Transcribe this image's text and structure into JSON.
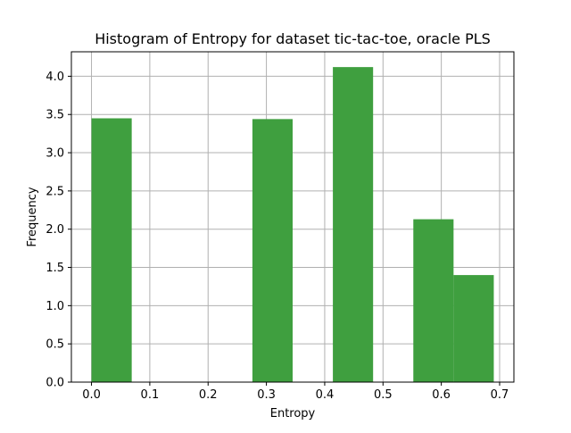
{
  "chart_data": {
    "type": "bar",
    "title": "Histogram of Entropy for dataset tic-tac-toe, oracle PLS",
    "xlabel": "Entropy",
    "ylabel": "Frequency",
    "xlim": [
      -0.0345,
      0.7245
    ],
    "ylim": [
      0.0,
      4.32
    ],
    "x_ticks": [
      {
        "value": 0.0,
        "label": "0.0"
      },
      {
        "value": 0.1,
        "label": "0.1"
      },
      {
        "value": 0.2,
        "label": "0.2"
      },
      {
        "value": 0.3,
        "label": "0.3"
      },
      {
        "value": 0.4,
        "label": "0.4"
      },
      {
        "value": 0.5,
        "label": "0.5"
      },
      {
        "value": 0.6,
        "label": "0.6"
      },
      {
        "value": 0.7,
        "label": "0.7"
      }
    ],
    "y_ticks": [
      {
        "value": 0.0,
        "label": "0.0"
      },
      {
        "value": 0.5,
        "label": "0.5"
      },
      {
        "value": 1.0,
        "label": "1.0"
      },
      {
        "value": 1.5,
        "label": "1.5"
      },
      {
        "value": 2.0,
        "label": "2.0"
      },
      {
        "value": 2.5,
        "label": "2.5"
      },
      {
        "value": 3.0,
        "label": "3.0"
      },
      {
        "value": 3.5,
        "label": "3.5"
      },
      {
        "value": 4.0,
        "label": "4.0"
      }
    ],
    "bins": [
      {
        "x0": 0.0,
        "x1": 0.069,
        "value": 3.45
      },
      {
        "x0": 0.069,
        "x1": 0.138,
        "value": 0.0
      },
      {
        "x0": 0.138,
        "x1": 0.207,
        "value": 0.0
      },
      {
        "x0": 0.207,
        "x1": 0.276,
        "value": 0.0
      },
      {
        "x0": 0.276,
        "x1": 0.345,
        "value": 3.44
      },
      {
        "x0": 0.345,
        "x1": 0.414,
        "value": 0.0
      },
      {
        "x0": 0.414,
        "x1": 0.483,
        "value": 4.12
      },
      {
        "x0": 0.483,
        "x1": 0.552,
        "value": 0.0
      },
      {
        "x0": 0.552,
        "x1": 0.621,
        "value": 2.13
      },
      {
        "x0": 0.621,
        "x1": 0.69,
        "value": 1.4
      }
    ],
    "grid": true,
    "bar_color": "#3f9f3f"
  }
}
